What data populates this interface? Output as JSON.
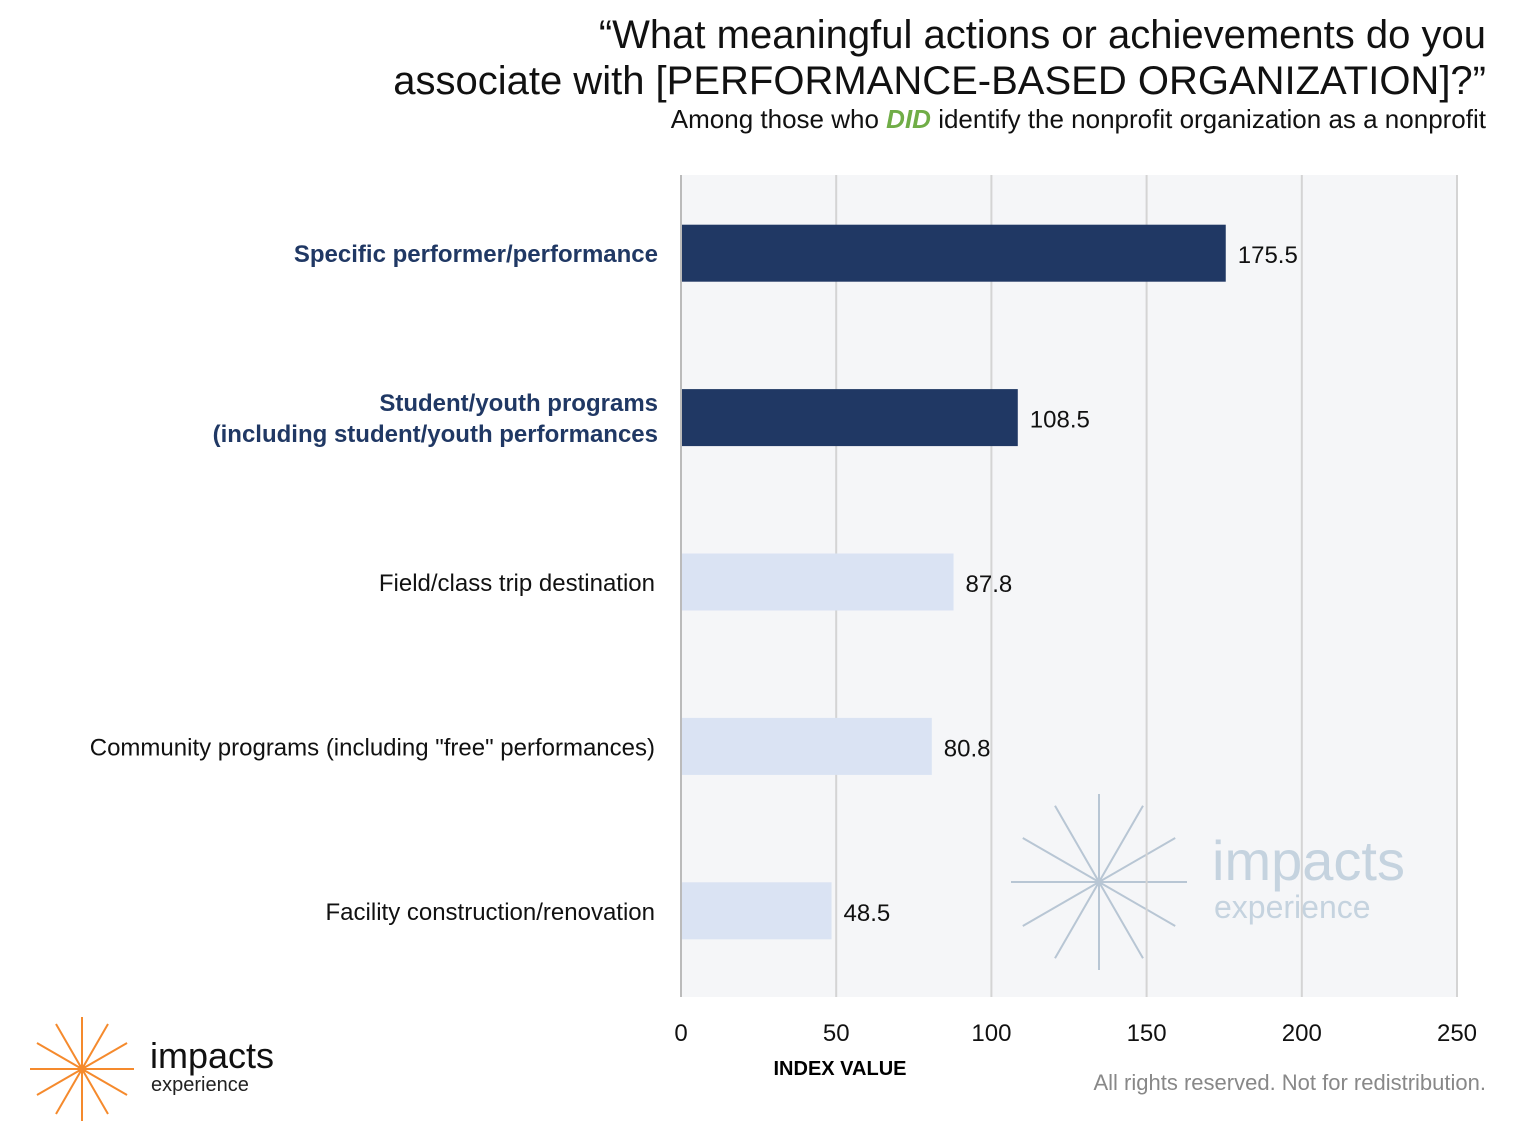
{
  "title_line1": "“What meaningful actions or achievements do you",
  "title_line2": "associate with [PERFORMANCE-BASED ORGANIZATION]?”",
  "subtitle_pre": "Among those who",
  "subtitle_emph": "DID",
  "subtitle_post": "identify the nonprofit organization as a nonprofit",
  "footer": "All rights reserved. Not for redistribution.",
  "logo": {
    "main": "impacts",
    "sub": "experience"
  },
  "watermark": {
    "main": "impacts",
    "sub": "experience"
  },
  "colors": {
    "highlight": "#203864",
    "normal": "#dae3f3",
    "plot_bg": "#f5f6f8",
    "accent": "#70ad47",
    "logo": "#f58a2d"
  },
  "chart_data": {
    "type": "bar",
    "orientation": "horizontal",
    "categories": [
      "Specific performer/performance",
      "Student/youth programs (including student/youth performances",
      "Field/class trip destination",
      "Community programs (including \"free\" performances)",
      "Facility construction/renovation"
    ],
    "category_lines": [
      [
        "Specific performer/performance"
      ],
      [
        "Student/youth programs",
        "(including student/youth performances"
      ],
      [
        "Field/class trip destination"
      ],
      [
        "Community programs (including \"free\" performances)"
      ],
      [
        "Facility construction/renovation"
      ]
    ],
    "values": [
      175.5,
      108.5,
      87.8,
      80.8,
      48.5
    ],
    "value_labels": [
      "175.5",
      "108.5",
      "87.8",
      "80.8",
      "48.5"
    ],
    "highlighted": [
      true,
      true,
      false,
      false,
      false
    ],
    "xlabel": "INDEX VALUE",
    "xlim": [
      0,
      250
    ],
    "xticks": [
      0,
      50,
      100,
      150,
      200,
      250
    ],
    "xtick_labels": [
      "0",
      "50",
      "100",
      "150",
      "200",
      "250"
    ],
    "grid": true
  }
}
